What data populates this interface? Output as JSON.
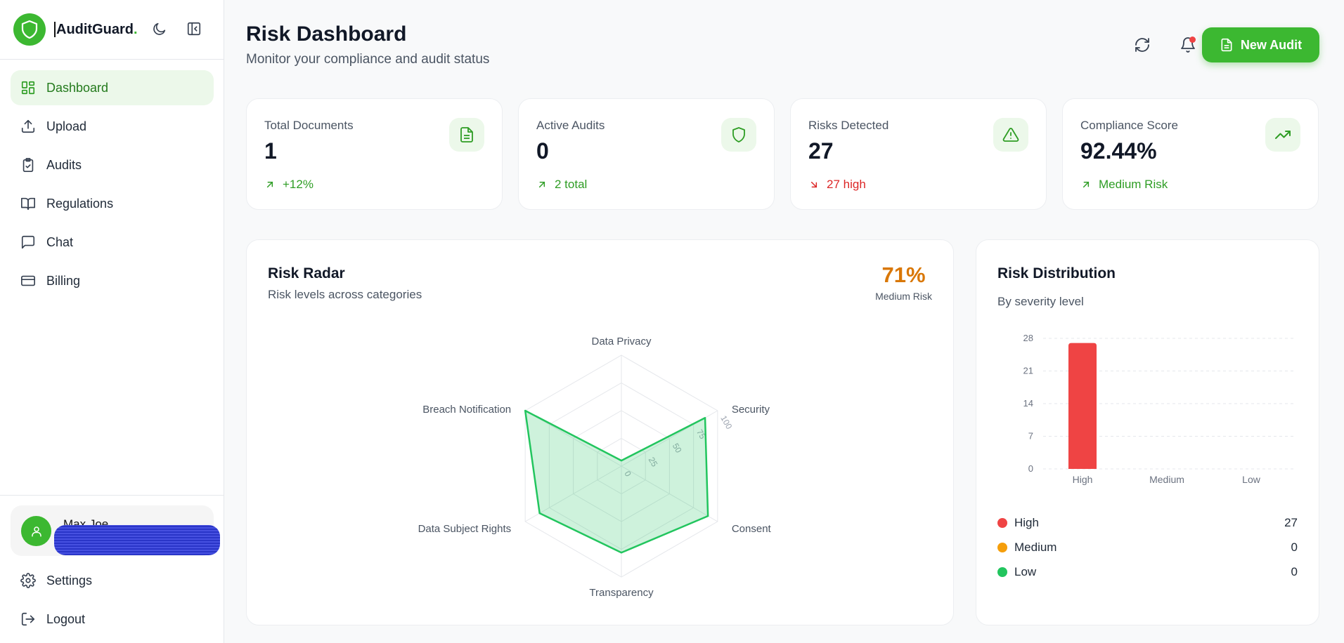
{
  "brand": {
    "name": "AuditGuard",
    "dot": ".",
    "accent": "#3cb831"
  },
  "sidebar": {
    "items": [
      {
        "label": "Dashboard",
        "icon": "grid-icon",
        "active": true
      },
      {
        "label": "Upload",
        "icon": "upload-icon"
      },
      {
        "label": "Audits",
        "icon": "clipboard-check-icon"
      },
      {
        "label": "Regulations",
        "icon": "book-icon"
      },
      {
        "label": "Chat",
        "icon": "chat-icon"
      },
      {
        "label": "Billing",
        "icon": "credit-card-icon"
      }
    ],
    "user": {
      "name": "Max Joe"
    },
    "bottom": [
      {
        "label": "Settings",
        "icon": "gear-icon"
      },
      {
        "label": "Logout",
        "icon": "logout-icon"
      }
    ]
  },
  "header": {
    "title": "Risk Dashboard",
    "subtitle": "Monitor your compliance and audit status",
    "new_audit_label": "New Audit"
  },
  "stats": [
    {
      "label": "Total Documents",
      "value": "1",
      "foot": "+12%",
      "trend": "up",
      "icon": "document-icon"
    },
    {
      "label": "Active Audits",
      "value": "0",
      "foot": "2 total",
      "trend": "up",
      "icon": "shield-icon"
    },
    {
      "label": "Risks Detected",
      "value": "27",
      "foot": "27 high",
      "trend": "down",
      "icon": "alert-triangle-icon"
    },
    {
      "label": "Compliance Score",
      "value": "92.44%",
      "foot": "Medium Risk",
      "trend": "up",
      "icon": "trending-up-icon"
    }
  ],
  "radar": {
    "title": "Risk Radar",
    "subtitle": "Risk levels across categories",
    "score": "71%",
    "score_label": "Medium Risk",
    "chart_data": {
      "type": "radar",
      "axes": [
        "Data Privacy",
        "Security",
        "Consent",
        "Transparency",
        "Data Subject Rights",
        "Breach Notification"
      ],
      "values": [
        5,
        87,
        90,
        78,
        85,
        100
      ],
      "rlim": [
        0,
        100
      ],
      "ticks": [
        "0",
        "25",
        "50",
        "75",
        "100"
      ],
      "color": "#22c55e"
    }
  },
  "distribution": {
    "title": "Risk Distribution",
    "subtitle": "By severity level",
    "chart_data": {
      "type": "bar",
      "categories": [
        "High",
        "Medium",
        "Low"
      ],
      "values": [
        27,
        0,
        0
      ],
      "colors": [
        "#ef4444",
        "#f59e0b",
        "#22c55e"
      ],
      "ylim": [
        0,
        28
      ],
      "yticks": [
        "0",
        "7",
        "14",
        "21",
        "28"
      ]
    },
    "legend": [
      {
        "label": "High",
        "value": "27",
        "color": "#ef4444"
      },
      {
        "label": "Medium",
        "value": "0",
        "color": "#f59e0b"
      },
      {
        "label": "Low",
        "value": "0",
        "color": "#22c55e"
      }
    ]
  }
}
